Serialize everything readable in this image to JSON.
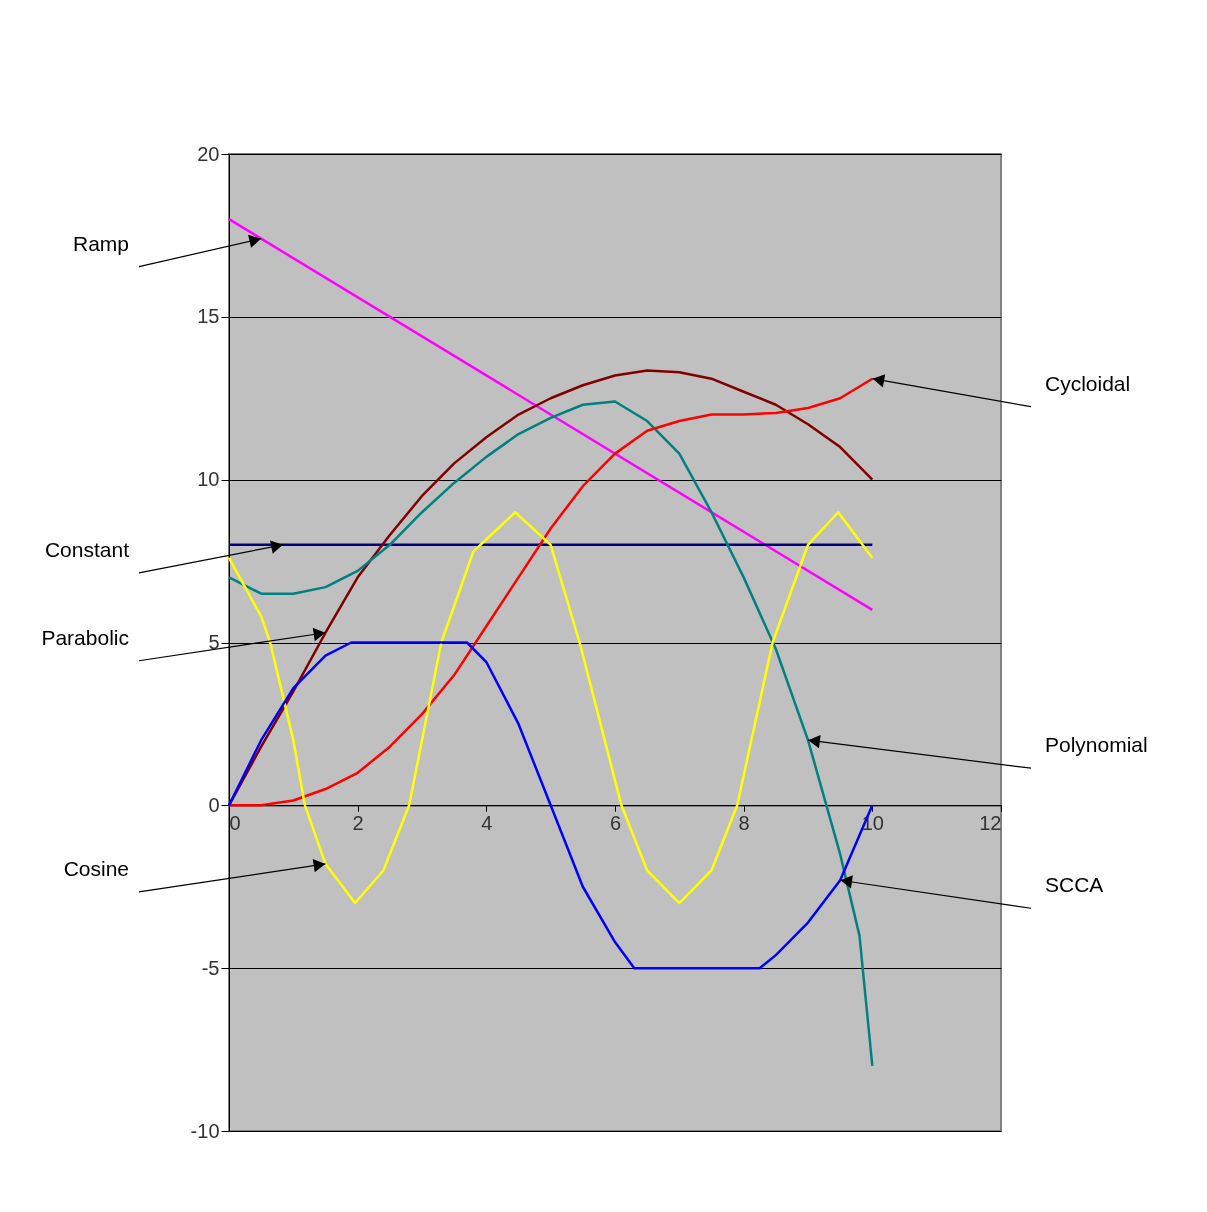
{
  "chart_data": {
    "type": "line",
    "xlim": [
      0,
      12
    ],
    "xticks": [
      0,
      2,
      4,
      6,
      8,
      10,
      12
    ],
    "ylim": [
      -10,
      20
    ],
    "yticks": [
      -10,
      -5,
      0,
      5,
      10,
      15,
      20
    ],
    "grid": "y",
    "legend": false,
    "marker": "none",
    "line_style": "solid",
    "series": [
      {
        "color": "#ff00ff",
        "x": [
          0,
          10
        ],
        "values": [
          18,
          6
        ]
      },
      {
        "color": "#000080",
        "x": [
          0,
          10
        ],
        "values": [
          8,
          8
        ]
      },
      {
        "color": "#800000",
        "x": [
          0,
          0.5,
          1,
          1.5,
          2,
          2.5,
          3,
          3.5,
          4,
          4.5,
          5,
          5.5,
          6,
          6.5,
          7,
          7.5,
          8,
          8.5,
          9,
          9.5,
          10
        ],
        "values": [
          0,
          1.8,
          3.5,
          5.3,
          7,
          8.3,
          9.5,
          10.5,
          11.3,
          12,
          12.5,
          12.9,
          13.2,
          13.35,
          13.3,
          13.1,
          12.7,
          12.3,
          11.7,
          11,
          10
        ]
      },
      {
        "color": "#008080",
        "x": [
          0,
          0.5,
          1,
          1.5,
          2,
          2.5,
          3,
          3.5,
          4,
          4.5,
          5,
          5.5,
          6,
          6.5,
          7,
          7.5,
          8,
          8.5,
          9,
          9.5,
          9.8,
          10
        ],
        "values": [
          7,
          6.5,
          6.5,
          6.7,
          7.2,
          8,
          9,
          9.9,
          10.7,
          11.4,
          11.9,
          12.3,
          12.4,
          11.8,
          10.8,
          9,
          7,
          4.8,
          2,
          -1.5,
          -4,
          -8
        ]
      },
      {
        "color": "#ff0000",
        "x": [
          0,
          0.5,
          1,
          1.5,
          2,
          2.5,
          3,
          3.5,
          4,
          4.5,
          5,
          5.5,
          6,
          6.5,
          7,
          7.5,
          8,
          8.5,
          9,
          9.5,
          10
        ],
        "values": [
          0,
          0,
          0.15,
          0.5,
          1,
          1.8,
          2.8,
          4,
          5.5,
          7,
          8.5,
          9.8,
          10.8,
          11.5,
          11.8,
          12,
          12,
          12.05,
          12.2,
          12.5,
          13.1
        ]
      },
      {
        "color": "#ffff00",
        "x": [
          0,
          0.5,
          0.64,
          1,
          1.18,
          1.5,
          1.96,
          2.4,
          2.8,
          3.3,
          3.8,
          4.45,
          5,
          5.45,
          6.1,
          6.5,
          7,
          7.5,
          7.9,
          8.45,
          9,
          9.47,
          10
        ],
        "values": [
          7.6,
          5.8,
          5,
          2,
          0,
          -1.8,
          -3,
          -2,
          0,
          5,
          7.8,
          9,
          8,
          5,
          0,
          -2,
          -3,
          -2,
          0,
          5,
          8,
          9,
          7.6
        ]
      },
      {
        "color": "#0000ff",
        "x": [
          0,
          0.5,
          1,
          1.5,
          1.9,
          3.7,
          4,
          4.5,
          5,
          5.5,
          6,
          6.3,
          8.25,
          8.5,
          9,
          9.5,
          10
        ],
        "values": [
          0,
          2,
          3.6,
          4.6,
          5,
          5,
          4.4,
          2.5,
          0,
          -2.5,
          -4.2,
          -5,
          -5,
          -4.6,
          -3.6,
          -2.3,
          0
        ]
      }
    ],
    "annotations": [
      {
        "text": "Ramp",
        "x": 0.5,
        "y": 17.4
      },
      {
        "text": "Constant",
        "x": 0.84,
        "y": 8
      },
      {
        "text": "Parabolic",
        "x": 1.5,
        "y": 5.3
      },
      {
        "text": "Cosine",
        "x": 1.5,
        "y": -1.8
      },
      {
        "text": "Cycloidal",
        "x": 10,
        "y": 13.1
      },
      {
        "text": "Polynomial",
        "x": 9,
        "y": 2
      },
      {
        "text": "SCCA",
        "x": 9.5,
        "y": -2.3
      }
    ]
  }
}
